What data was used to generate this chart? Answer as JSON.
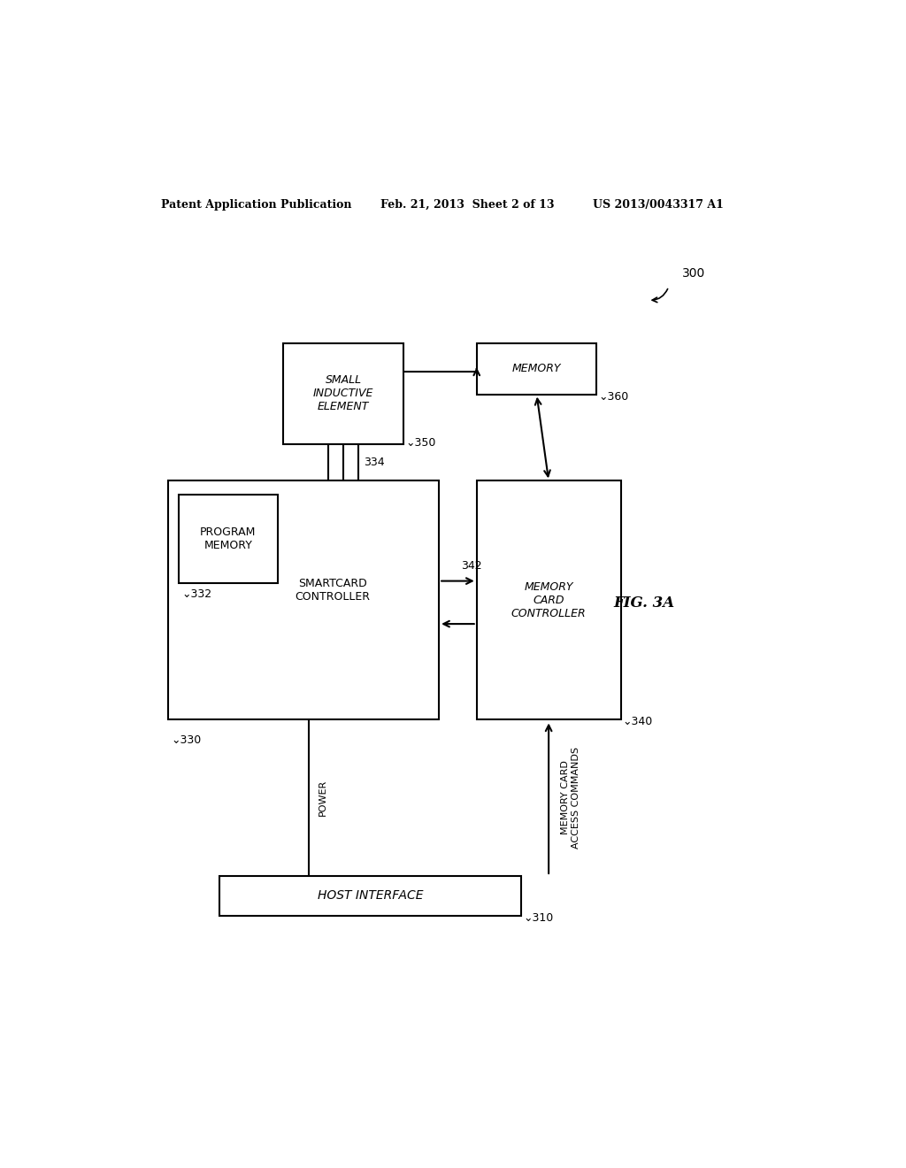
{
  "bg_color": "#ffffff",
  "header_left": "Patent Application Publication",
  "header_mid": "Feb. 21, 2013  Sheet 2 of 13",
  "header_right": "US 2013/0043317 A1",
  "fig_label": "FIG. 3A",
  "ref_300": "300",
  "font_size_header": 9,
  "font_size_label": 9,
  "font_size_ref": 9,
  "font_size_fig": 12
}
